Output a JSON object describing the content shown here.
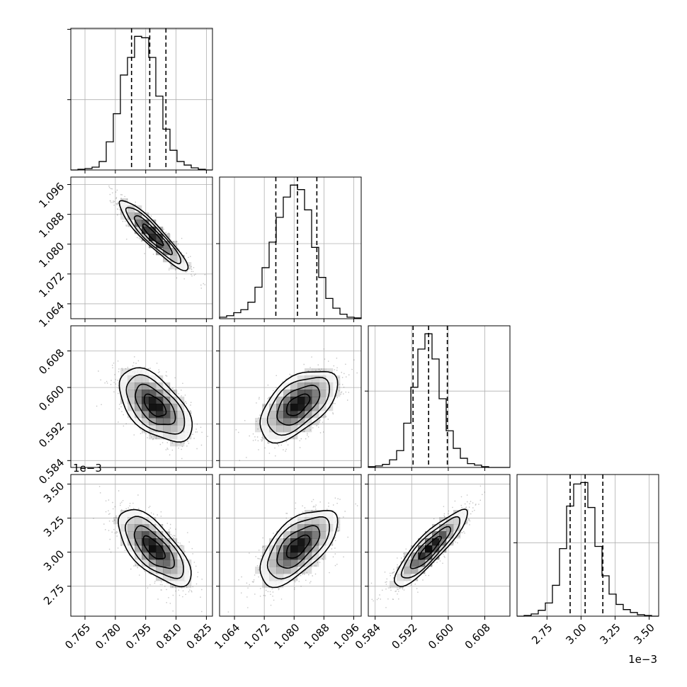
{
  "chart_data": {
    "type": "corner",
    "grid": true,
    "colors": {
      "line": "#000000",
      "grid": "#b0b0b0",
      "cell": "#000000",
      "points": "#555555"
    },
    "parameters": [
      {
        "id": "p1",
        "range": [
          0.758,
          0.828
        ],
        "ticks": [
          "0.765",
          "0.780",
          "0.795",
          "0.810",
          "0.825"
        ],
        "scale_label": "",
        "quantiles": [
          0.788,
          0.797,
          0.805
        ],
        "hist_edges_start": 0.758,
        "hist_bin": 0.0035,
        "hist_counts": [
          0,
          1,
          2,
          4,
          12,
          40,
          80,
          135,
          160,
          190,
          188,
          160,
          105,
          58,
          28,
          12,
          7,
          3,
          1,
          0
        ]
      },
      {
        "id": "p2",
        "range": [
          1.06,
          1.098
        ],
        "ticks": [
          "1.064",
          "1.072",
          "1.080",
          "1.088",
          "1.096"
        ],
        "scale_label": "",
        "quantiles": [
          1.0751,
          1.0809,
          1.0861
        ],
        "hist_edges_start": 1.06,
        "hist_bin": 0.0019,
        "hist_counts": [
          2,
          4,
          8,
          12,
          22,
          42,
          68,
          102,
          135,
          162,
          178,
          172,
          145,
          95,
          55,
          27,
          14,
          6,
          2,
          1
        ]
      },
      {
        "id": "p3",
        "range": [
          0.5825,
          0.6135
        ],
        "ticks": [
          "0.584",
          "0.592",
          "0.600",
          "0.608"
        ],
        "scale_label": "",
        "quantiles": [
          0.5923,
          0.5957,
          0.5998
        ],
        "hist_edges_start": 0.5825,
        "hist_bin": 0.00155,
        "hist_counts": [
          1,
          2,
          4,
          10,
          22,
          58,
          105,
          155,
          175,
          142,
          90,
          48,
          25,
          12,
          5,
          3,
          1,
          0,
          0,
          0
        ]
      },
      {
        "id": "p4",
        "range": [
          2.53,
          3.57
        ],
        "ticks": [
          "2.75",
          "3.00",
          "3.25",
          "3.50"
        ],
        "scale_label": "1e−3",
        "quantiles": [
          2.92,
          3.03,
          3.16
        ],
        "hist_edges_start": 2.53,
        "hist_bin": 0.052,
        "hist_counts": [
          0,
          1,
          3,
          8,
          18,
          42,
          92,
          150,
          180,
          182,
          148,
          95,
          55,
          30,
          16,
          9,
          5,
          2,
          1,
          0
        ]
      }
    ],
    "pairs": [
      {
        "row": 1,
        "col": 0,
        "center": [
          0.7985,
          1.0825
        ],
        "sd": [
          0.0085,
          0.0047
        ],
        "corr": -0.92
      },
      {
        "row": 2,
        "col": 0,
        "center": [
          0.7995,
          0.596
        ],
        "sd": [
          0.009,
          0.004
        ],
        "corr": -0.55
      },
      {
        "row": 2,
        "col": 1,
        "center": [
          1.081,
          0.5962
        ],
        "sd": [
          0.0052,
          0.0039
        ],
        "corr": 0.55
      },
      {
        "row": 3,
        "col": 0,
        "center": [
          0.799,
          3.03
        ],
        "sd": [
          0.009,
          0.14
        ],
        "corr": -0.68
      },
      {
        "row": 3,
        "col": 1,
        "center": [
          1.081,
          3.04
        ],
        "sd": [
          0.0052,
          0.14
        ],
        "corr": 0.62
      },
      {
        "row": 3,
        "col": 2,
        "center": [
          0.596,
          3.03
        ],
        "sd": [
          0.004,
          0.14
        ],
        "corr": 0.88
      }
    ]
  }
}
